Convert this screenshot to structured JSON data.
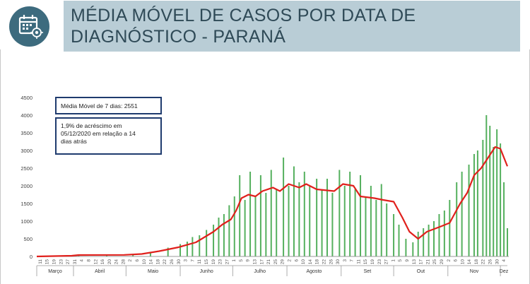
{
  "header": {
    "title": "MÉDIA MÓVEL DE CASOS POR DATA DE DIAGNÓSTICO - PARANÁ",
    "icon": "calendar-icon",
    "icon_color": "#3d6b7e",
    "banner_color": "#b9cdd6"
  },
  "annotations": {
    "moving_avg": "Média Móvel de 7 dias: 2551",
    "increase": "1,9% de acréscimo em\n05/12/2020  em relação a 14\ndias atrás"
  },
  "chart_data": {
    "type": "bar",
    "combo_line": true,
    "title": "",
    "xlabel": "",
    "ylabel": "",
    "ylim": [
      0,
      4500
    ],
    "yticks": [
      0,
      500,
      1000,
      1500,
      2000,
      2500,
      3000,
      3500,
      4000,
      4500
    ],
    "grid": false,
    "bar_color": "#55b05e",
    "line_color": "#e0201c",
    "day_labels": [
      "11",
      "15",
      "19",
      "23",
      "27",
      "31",
      "4",
      "8",
      "12",
      "16",
      "20",
      "24",
      "28",
      "2",
      "6",
      "10",
      "14",
      "18",
      "22",
      "26",
      "30",
      "3",
      "7",
      "11",
      "15",
      "19",
      "23",
      "27",
      "1",
      "5",
      "9",
      "13",
      "17",
      "21",
      "25",
      "29",
      "2",
      "6",
      "10",
      "14",
      "18",
      "22",
      "26",
      "30",
      "3",
      "7",
      "11",
      "15",
      "19",
      "23",
      "27",
      "1",
      "5",
      "9",
      "13",
      "17",
      "21",
      "25",
      "29",
      "2",
      "6",
      "10",
      "14",
      "18",
      "22",
      "26",
      "30",
      "4"
    ],
    "months": [
      {
        "label": "Março",
        "start": "2020-03-11",
        "end": "2020-03-31"
      },
      {
        "label": "Abril",
        "start": "2020-04-01",
        "end": "2020-04-30"
      },
      {
        "label": "Maio",
        "start": "2020-05-01",
        "end": "2020-05-31"
      },
      {
        "label": "Junho",
        "start": "2020-06-01",
        "end": "2020-06-30"
      },
      {
        "label": "Julho",
        "start": "2020-07-01",
        "end": "2020-07-31"
      },
      {
        "label": "Agosto",
        "start": "2020-08-01",
        "end": "2020-08-31"
      },
      {
        "label": "Set",
        "start": "2020-09-01",
        "end": "2020-09-30"
      },
      {
        "label": "Out",
        "start": "2020-10-01",
        "end": "2020-10-31"
      },
      {
        "label": "Nov",
        "start": "2020-11-01",
        "end": "2020-11-30"
      },
      {
        "label": "Dez",
        "start": "2020-12-01",
        "end": "2020-12-05"
      }
    ],
    "x_range": [
      "2020-03-11",
      "2020-12-05"
    ],
    "series": [
      {
        "name": "Casos",
        "kind": "bar",
        "points": [
          [
            "2020-03-20",
            10
          ],
          [
            "2020-04-04",
            40
          ],
          [
            "2020-04-20",
            45
          ],
          [
            "2020-05-05",
            60
          ],
          [
            "2020-05-15",
            120
          ],
          [
            "2020-05-25",
            250
          ],
          [
            "2020-06-01",
            350
          ],
          [
            "2020-06-05",
            420
          ],
          [
            "2020-06-08",
            550
          ],
          [
            "2020-06-12",
            600
          ],
          [
            "2020-06-16",
            750
          ],
          [
            "2020-06-20",
            900
          ],
          [
            "2020-06-23",
            1100
          ],
          [
            "2020-06-26",
            1200
          ],
          [
            "2020-06-29",
            1450
          ],
          [
            "2020-07-02",
            1700
          ],
          [
            "2020-07-05",
            2300
          ],
          [
            "2020-07-08",
            1600
          ],
          [
            "2020-07-11",
            2400
          ],
          [
            "2020-07-14",
            1700
          ],
          [
            "2020-07-17",
            2300
          ],
          [
            "2020-07-20",
            1800
          ],
          [
            "2020-07-23",
            2450
          ],
          [
            "2020-07-26",
            1900
          ],
          [
            "2020-07-30",
            2800
          ],
          [
            "2020-08-02",
            2000
          ],
          [
            "2020-08-05",
            2550
          ],
          [
            "2020-08-08",
            2100
          ],
          [
            "2020-08-11",
            2400
          ],
          [
            "2020-08-14",
            2000
          ],
          [
            "2020-08-18",
            2200
          ],
          [
            "2020-08-21",
            1900
          ],
          [
            "2020-08-24",
            2200
          ],
          [
            "2020-08-27",
            1800
          ],
          [
            "2020-08-31",
            2450
          ],
          [
            "2020-09-03",
            2000
          ],
          [
            "2020-09-06",
            2400
          ],
          [
            "2020-09-09",
            1900
          ],
          [
            "2020-09-12",
            2300
          ],
          [
            "2020-09-15",
            1700
          ],
          [
            "2020-09-18",
            2000
          ],
          [
            "2020-09-21",
            1600
          ],
          [
            "2020-09-24",
            2050
          ],
          [
            "2020-09-27",
            1500
          ],
          [
            "2020-10-01",
            1200
          ],
          [
            "2020-10-04",
            900
          ],
          [
            "2020-10-08",
            500
          ],
          [
            "2020-10-12",
            400
          ],
          [
            "2020-10-15",
            700
          ],
          [
            "2020-10-18",
            800
          ],
          [
            "2020-10-21",
            900
          ],
          [
            "2020-10-24",
            1000
          ],
          [
            "2020-10-27",
            1200
          ],
          [
            "2020-10-30",
            1300
          ],
          [
            "2020-11-02",
            1600
          ],
          [
            "2020-11-06",
            2100
          ],
          [
            "2020-11-09",
            2400
          ],
          [
            "2020-11-13",
            2600
          ],
          [
            "2020-11-16",
            2900
          ],
          [
            "2020-11-18",
            3000
          ],
          [
            "2020-11-21",
            3300
          ],
          [
            "2020-11-23",
            4000
          ],
          [
            "2020-11-25",
            3700
          ],
          [
            "2020-11-27",
            3100
          ],
          [
            "2020-11-29",
            3600
          ],
          [
            "2020-12-01",
            3200
          ],
          [
            "2020-12-03",
            2100
          ],
          [
            "2020-12-05",
            800
          ]
        ]
      },
      {
        "name": "Média Móvel de 7 dias",
        "kind": "line",
        "points": [
          [
            "2020-03-11",
            0
          ],
          [
            "2020-03-31",
            20
          ],
          [
            "2020-04-04",
            40
          ],
          [
            "2020-04-30",
            45
          ],
          [
            "2020-05-10",
            70
          ],
          [
            "2020-05-20",
            150
          ],
          [
            "2020-05-31",
            260
          ],
          [
            "2020-06-10",
            400
          ],
          [
            "2020-06-20",
            700
          ],
          [
            "2020-06-25",
            900
          ],
          [
            "2020-06-30",
            1050
          ],
          [
            "2020-07-03",
            1300
          ],
          [
            "2020-07-06",
            1650
          ],
          [
            "2020-07-10",
            1750
          ],
          [
            "2020-07-14",
            1700
          ],
          [
            "2020-07-18",
            1850
          ],
          [
            "2020-07-24",
            1950
          ],
          [
            "2020-07-28",
            1850
          ],
          [
            "2020-08-02",
            2050
          ],
          [
            "2020-08-08",
            1950
          ],
          [
            "2020-08-12",
            2050
          ],
          [
            "2020-08-18",
            1900
          ],
          [
            "2020-08-28",
            1850
          ],
          [
            "2020-09-02",
            2050
          ],
          [
            "2020-09-08",
            2000
          ],
          [
            "2020-09-12",
            1700
          ],
          [
            "2020-09-20",
            1650
          ],
          [
            "2020-09-25",
            1600
          ],
          [
            "2020-10-01",
            1550
          ],
          [
            "2020-10-06",
            1100
          ],
          [
            "2020-10-10",
            700
          ],
          [
            "2020-10-15",
            500
          ],
          [
            "2020-10-20",
            700
          ],
          [
            "2020-10-28",
            850
          ],
          [
            "2020-11-02",
            950
          ],
          [
            "2020-11-08",
            1500
          ],
          [
            "2020-11-12",
            1800
          ],
          [
            "2020-11-16",
            2300
          ],
          [
            "2020-11-20",
            2500
          ],
          [
            "2020-11-24",
            2800
          ],
          [
            "2020-11-28",
            3100
          ],
          [
            "2020-12-01",
            3050
          ],
          [
            "2020-12-05",
            2551
          ]
        ]
      }
    ]
  }
}
